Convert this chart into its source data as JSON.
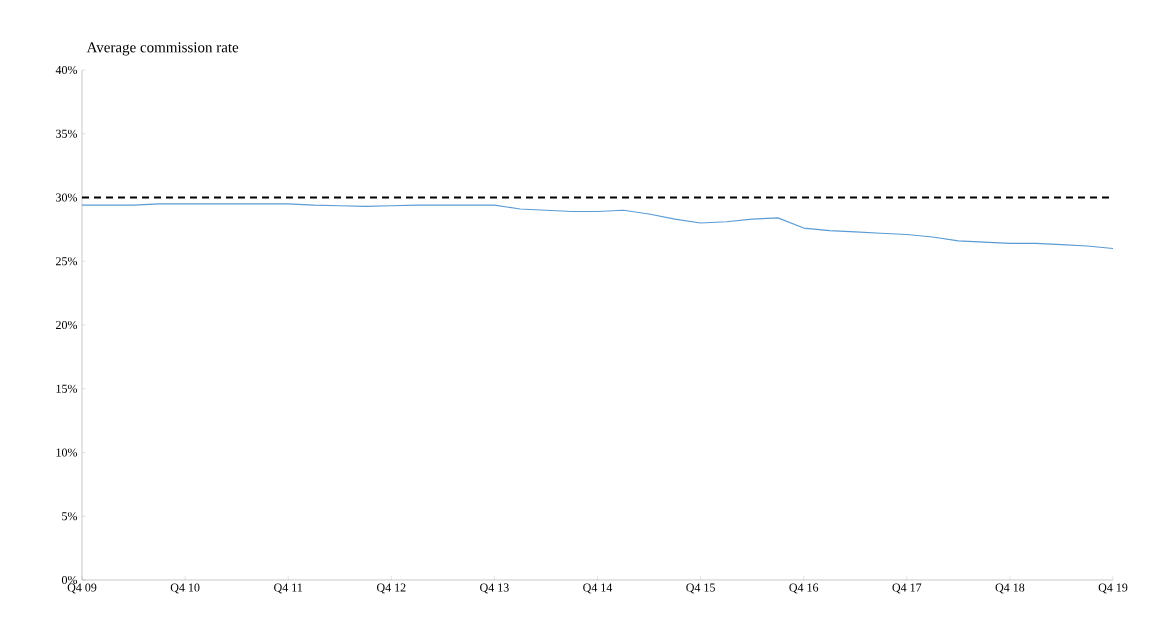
{
  "chart_data": {
    "type": "line",
    "title": "Average commission rate",
    "categories": [
      "Q4 09",
      null,
      null,
      null,
      "Q4 10",
      null,
      null,
      null,
      "Q4 11",
      null,
      null,
      null,
      "Q4 12",
      null,
      null,
      null,
      "Q4 13",
      null,
      null,
      null,
      "Q4 14",
      null,
      null,
      null,
      "Q4 15",
      null,
      null,
      null,
      "Q4 16",
      null,
      null,
      null,
      "Q4 17",
      null,
      null,
      null,
      "Q4 18",
      null,
      null,
      null,
      "Q4 19"
    ],
    "series": [
      {
        "color": "#5b9bd5",
        "values": [
          29.4,
          29.4,
          29.4,
          29.5,
          29.5,
          29.5,
          29.5,
          29.5,
          29.5,
          29.4,
          29.35,
          29.3,
          29.35,
          29.4,
          29.4,
          29.4,
          29.4,
          29.1,
          29.0,
          28.9,
          28.9,
          29.0,
          28.7,
          28.3,
          28.0,
          28.1,
          28.3,
          28.4,
          27.6,
          27.4,
          27.3,
          27.2,
          27.1,
          26.9,
          26.6,
          26.5,
          26.4,
          26.4,
          26.3,
          26.2,
          26.0
        ]
      }
    ],
    "ylim": [
      0,
      40
    ],
    "yticks": [
      {
        "value": 0,
        "label": "0%"
      },
      {
        "value": 5,
        "label": "5%"
      },
      {
        "value": 10,
        "label": "10%"
      },
      {
        "value": 15,
        "label": "15%"
      },
      {
        "value": 20,
        "label": "20%"
      },
      {
        "value": 25,
        "label": "25%"
      },
      {
        "value": 30,
        "label": "30%"
      },
      {
        "value": 35,
        "label": "35%"
      },
      {
        "value": 40,
        "label": "40%"
      }
    ],
    "ref_lines": [
      {
        "axis": "y",
        "value": 30,
        "color": "#000000",
        "line_style": "dashed"
      }
    ],
    "grid": false,
    "marker": "none",
    "line_style": "solid"
  }
}
